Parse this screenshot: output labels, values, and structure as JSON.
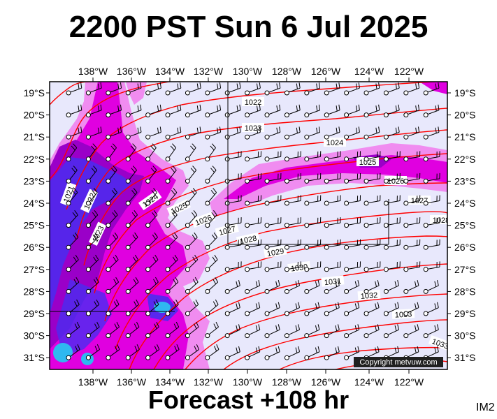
{
  "title": "2200 PST Sun 6 Jul 2025",
  "forecast": "Forecast +108 hr",
  "code": "IM2",
  "copyright": "Copyright metvuw.com",
  "longitudes": [
    "138°W",
    "136°W",
    "134°W",
    "132°W",
    "130°W",
    "128°W",
    "126°W",
    "124°W",
    "122°W"
  ],
  "latitudes": [
    "19°S",
    "20°S",
    "21°S",
    "22°S",
    "23°S",
    "24°S",
    "25°S",
    "26°S",
    "27°S",
    "28°S",
    "29°S",
    "30°S",
    "31°S"
  ],
  "isobar_labels": [
    "1021",
    "1022",
    "1023",
    "1024",
    "1025",
    "1026",
    "1027",
    "1028",
    "1029",
    "1030",
    "1031",
    "1032",
    "1033"
  ],
  "colors": {
    "sea": "#e8e8fc",
    "precip_light": "#f08cf0",
    "precip_mid": "#e000e0",
    "precip_heavy": "#9a00c8",
    "precip_deep": "#4a2cf0",
    "precip_core": "#2fb8f0",
    "isobar": "#ff0000",
    "frame": "#000000"
  }
}
